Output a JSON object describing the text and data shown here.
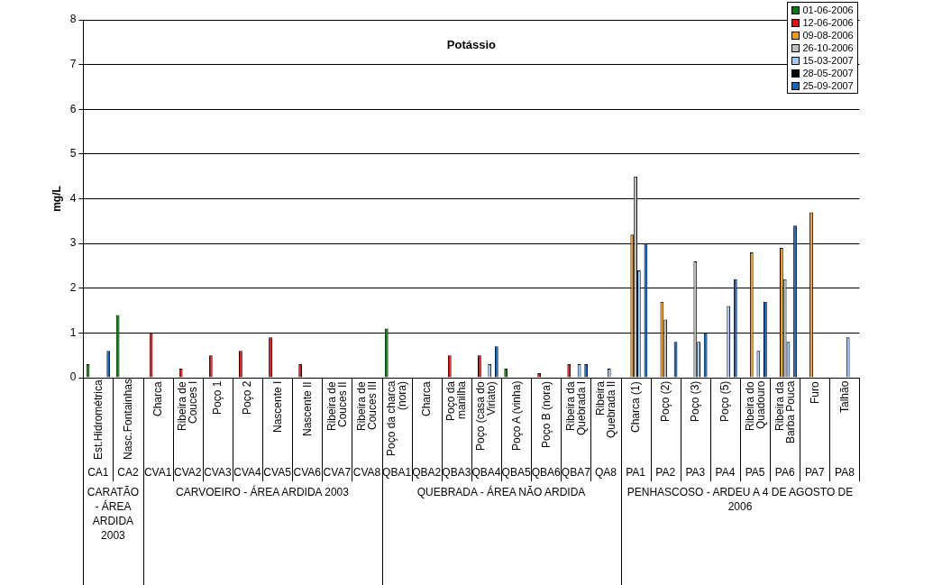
{
  "chart_data": {
    "type": "bar",
    "title": "Potássio",
    "ylabel": "mg/L",
    "categories": [
      "CA1",
      "CA2",
      "CVA1",
      "CVA2",
      "CVA3",
      "CVA4",
      "CVA5",
      "CVA6",
      "CVA7",
      "CVA8",
      "QBA1",
      "QBA2",
      "QBA3",
      "QBA4",
      "QBA5",
      "QBA6",
      "QBA7",
      "QA8",
      "PA1",
      "PA2",
      "PA3",
      "PA4",
      "PA5",
      "PA6",
      "PA7",
      "PA8"
    ],
    "series": [
      {
        "name": "01-06-2006",
        "color": "#008000",
        "values": [
          0.3,
          1.4,
          null,
          null,
          null,
          null,
          null,
          null,
          null,
          null,
          1.1,
          null,
          null,
          null,
          0.2,
          null,
          null,
          null,
          null,
          null,
          null,
          null,
          null,
          null,
          null,
          null
        ]
      },
      {
        "name": "12-06-2006",
        "color": "#ff0000",
        "values": [
          null,
          null,
          1.0,
          0.2,
          0.5,
          0.6,
          0.9,
          0.3,
          null,
          null,
          null,
          null,
          0.5,
          0.5,
          null,
          0.1,
          0.3,
          null,
          null,
          null,
          null,
          null,
          null,
          null,
          null,
          null
        ]
      },
      {
        "name": "09-08-2006",
        "color": "#ff9900",
        "values": [
          null,
          null,
          null,
          null,
          null,
          null,
          null,
          null,
          null,
          null,
          null,
          null,
          null,
          null,
          null,
          null,
          null,
          null,
          3.2,
          1.7,
          null,
          null,
          2.8,
          2.9,
          3.7,
          null
        ]
      },
      {
        "name": "26-10-2006",
        "color": "#c0c0c0",
        "values": [
          null,
          null,
          null,
          null,
          null,
          null,
          null,
          null,
          null,
          null,
          null,
          null,
          null,
          null,
          null,
          null,
          null,
          null,
          4.5,
          1.3,
          2.6,
          null,
          null,
          2.2,
          null,
          null
        ]
      },
      {
        "name": "15-03-2007",
        "color": "#99ccff",
        "values": [
          null,
          null,
          null,
          null,
          null,
          null,
          null,
          null,
          null,
          null,
          null,
          null,
          null,
          0.3,
          null,
          null,
          0.3,
          0.2,
          2.4,
          null,
          0.8,
          1.6,
          0.6,
          0.8,
          null,
          0.9
        ]
      },
      {
        "name": "28-05-2007",
        "color": "#000000",
        "values": [
          null,
          null,
          null,
          null,
          null,
          null,
          null,
          null,
          null,
          null,
          null,
          null,
          null,
          null,
          null,
          null,
          null,
          null,
          null,
          null,
          null,
          null,
          null,
          null,
          null,
          null
        ]
      },
      {
        "name": "25-09-2007",
        "color": "#0066cc",
        "values": [
          0.6,
          null,
          null,
          null,
          null,
          null,
          null,
          null,
          null,
          null,
          null,
          null,
          null,
          0.7,
          null,
          null,
          0.3,
          null,
          3.0,
          0.8,
          1.0,
          2.2,
          1.7,
          3.4,
          null,
          null
        ]
      }
    ],
    "ylim": [
      0,
      8
    ],
    "yticks": [
      0,
      1,
      2,
      3,
      4,
      5,
      6,
      7,
      8
    ],
    "grid": "y",
    "legend": "top right",
    "annotations": [
      "Est.Hidrométrica",
      "Nasc.Fontainhas",
      "Charca",
      "Ribeira de Couces I",
      "Poço 1",
      "Poço 2",
      "Nascente I",
      "Nascente II",
      "Ribeira de Couces II",
      "Ribeira de Couces III",
      "Poço da charca (nora)",
      "Charca",
      "Poço da manilha",
      "Poço (casa do Viriato)",
      "Poço A (vinha)",
      "Poço B (nora)",
      "Ribeira da Quebrada I",
      "Ribeira Quebrada II",
      "Charca (1)",
      "Poço (2)",
      "Poço (3)",
      "Poço (5)",
      "Ribeira do Quadouro",
      "Ribeira da Barba Pouca",
      "Furo",
      "Talhão",
      "CARATÃO - ÁREA ARDIDA 2003",
      "CARVOEIRO - ÁREA  ARDIDA 2003",
      "QUEBRADA - ÁREA NÃO ARDIDA",
      "PENHASCOSO - ARDEU A 4 DE AGOSTO DE 2006"
    ]
  }
}
